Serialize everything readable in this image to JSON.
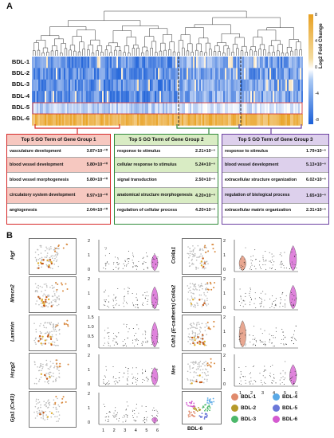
{
  "panel_a": {
    "label": "A",
    "rows": [
      "BDL-1",
      "BDL-2",
      "BDL-3",
      "BDL-4",
      "BDL-5",
      "BDL-6"
    ],
    "colorbar": {
      "title": "Log2 Fold Change",
      "ticks": [
        "8",
        "4",
        "0",
        "-4",
        "-8"
      ],
      "high_color": "#e8a020",
      "low_color": "#1a5fd8"
    },
    "groups": [
      {
        "title": "Top 5 GO Term of Gene Group 1",
        "border": "#d62828",
        "head_bg": "#f6c8c0",
        "terms": [
          {
            "term": "vasculature development",
            "p": "3.87×10⁻¹⁰"
          },
          {
            "term": "blood vessel development",
            "p": "5.80×10⁻¹⁰"
          },
          {
            "term": "blood vessel morphogenesis",
            "p": "5.80×10⁻¹⁰"
          },
          {
            "term": "circulatory system development",
            "p": "8.97×10⁻¹⁰"
          },
          {
            "term": "angiogenesis",
            "p": "2.04×10⁻¹⁰"
          }
        ]
      },
      {
        "title": "Top 5 GO Term of Gene Group 2",
        "border": "#2f8a3a",
        "head_bg": "#d9ecc4",
        "terms": [
          {
            "term": "response to stimulus",
            "p": "2.21×10⁻⁶"
          },
          {
            "term": "cellular response to stimulus",
            "p": "5.24×10⁻⁶"
          },
          {
            "term": "signal transduction",
            "p": "2.50×10⁻⁶"
          },
          {
            "term": "anatomical structure morphogenesis",
            "p": "4.20×10⁻⁶"
          },
          {
            "term": "regulation of cellular process",
            "p": "4.20×10⁻⁶"
          }
        ]
      },
      {
        "title": "Top 5 GO Term of Gene Group 3",
        "border": "#6b3fa0",
        "head_bg": "#ddd0ec",
        "terms": [
          {
            "term": "response to stimulus",
            "p": "1.79×10⁻⁶"
          },
          {
            "term": "blood vessel development",
            "p": "5.13×10⁻⁶"
          },
          {
            "term": "extracellular structure organization",
            "p": "6.02×10⁻⁶"
          },
          {
            "term": "regulation of biological process",
            "p": "1.65×10⁻⁶"
          },
          {
            "term": "extracellular matrix organization",
            "p": "2.31×10⁻⁶"
          }
        ]
      }
    ]
  },
  "panel_b": {
    "label": "B",
    "left_genes": [
      "Hgf",
      "Mmcn2",
      "Laminin",
      "Hspg2",
      "Gja1 (Cx43)"
    ],
    "right_genes": [
      "Col4a1",
      "Col4a2",
      "Cdh1 (E-cadherin)",
      "Nes"
    ],
    "left_yticks": [
      [
        "2",
        "1",
        "0"
      ],
      [
        "2",
        "1",
        "0"
      ],
      [
        "1.5",
        "1.0",
        "0.5",
        "0"
      ],
      [
        "2",
        "1",
        "0"
      ],
      [
        "2",
        "1",
        "0"
      ]
    ],
    "right_yticks": [
      [
        "2",
        "1",
        "0"
      ],
      [
        "2",
        "1",
        "0"
      ],
      [
        "2",
        "1",
        "0"
      ],
      [
        "2",
        "1",
        "0"
      ]
    ],
    "x_ticks": [
      "1",
      "2",
      "3",
      "4",
      "5",
      "6"
    ],
    "tsne_label": "BDL-6",
    "legend": [
      {
        "label": "BDL-1",
        "color": "#e08a6c"
      },
      {
        "label": "BDL-4",
        "color": "#5aa9e6"
      },
      {
        "label": "BDL-2",
        "color": "#b59a2a"
      },
      {
        "label": "BDL-5",
        "color": "#6b78d8"
      },
      {
        "label": "BDL-3",
        "color": "#4cb86a"
      },
      {
        "label": "BDL-6",
        "color": "#d45ad0"
      }
    ]
  }
}
